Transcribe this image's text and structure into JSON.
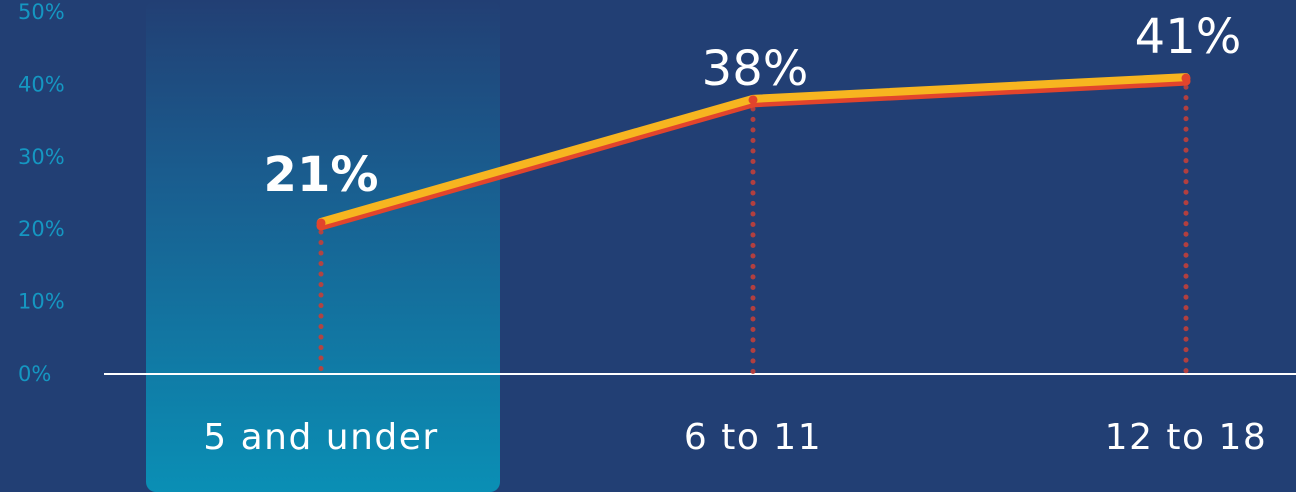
{
  "chart_data": {
    "type": "line",
    "categories": [
      "5 and under",
      "6 to 11",
      "12 to 18"
    ],
    "series": [
      {
        "values": [
          21,
          38,
          41
        ]
      }
    ],
    "data_labels": [
      "21%",
      "38%",
      "41%"
    ],
    "yticks": [
      "0%",
      "10%",
      "20%",
      "30%",
      "40%",
      "50%"
    ],
    "ylim": [
      0,
      50
    ],
    "highlighted_category": "5 and under",
    "grid": false,
    "colors": {
      "background": "#223f74",
      "line": "#f7b520",
      "line_shadow": "#e2442c",
      "drop_line": "#c2403a",
      "highlight_top": "#1f5a8a",
      "highlight_bottom": "#0a8fb5",
      "axis": "#ffffff",
      "tick_text": "#1597c2"
    }
  }
}
